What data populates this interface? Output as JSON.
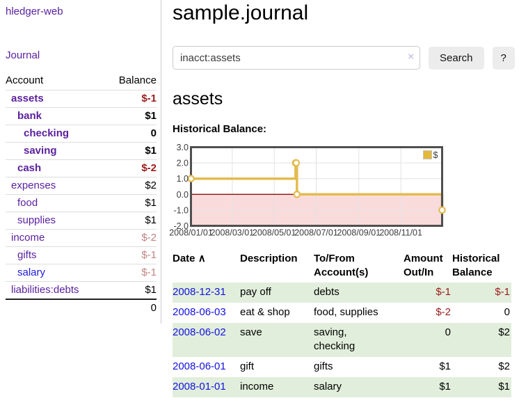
{
  "app": {
    "brand": "hledger-web",
    "nav_journal": "Journal"
  },
  "sidebar": {
    "header": {
      "account": "Account",
      "balance": "Balance"
    },
    "accounts": [
      {
        "name": "assets",
        "balance": "$-1",
        "row_cls": "lvl1 strong",
        "name_cls": "",
        "bal_cls": "neg"
      },
      {
        "name": "bank",
        "balance": "$1",
        "row_cls": "lvl2 strong",
        "name_cls": "",
        "bal_cls": ""
      },
      {
        "name": "checking",
        "balance": "0",
        "row_cls": "lvl3 strong",
        "name_cls": "",
        "bal_cls": ""
      },
      {
        "name": "saving",
        "balance": "$1",
        "row_cls": "lvl3 strong",
        "name_cls": "",
        "bal_cls": ""
      },
      {
        "name": "cash",
        "balance": "$-2",
        "row_cls": "lvl2 strong",
        "name_cls": "",
        "bal_cls": "neg"
      },
      {
        "name": "expenses",
        "balance": "$2",
        "row_cls": "lvl1",
        "name_cls": "",
        "bal_cls": ""
      },
      {
        "name": "food",
        "balance": "$1",
        "row_cls": "lvl2",
        "name_cls": "",
        "bal_cls": ""
      },
      {
        "name": "supplies",
        "balance": "$1",
        "row_cls": "lvl2",
        "name_cls": "",
        "bal_cls": ""
      },
      {
        "name": "income",
        "balance": "$-2",
        "row_cls": "lvl1",
        "name_cls": "",
        "bal_cls": "neg-muted"
      },
      {
        "name": "gifts",
        "balance": "$-1",
        "row_cls": "lvl2",
        "name_cls": "",
        "bal_cls": "neg-muted"
      },
      {
        "name": "salary",
        "balance": "$-1",
        "row_cls": "lvl2",
        "name_cls": "blue",
        "bal_cls": "neg-muted"
      },
      {
        "name": "liabilities:debts",
        "balance": "$1",
        "row_cls": "lvl1",
        "name_cls": "",
        "bal_cls": ""
      }
    ],
    "total": "0"
  },
  "main": {
    "title": "sample.journal",
    "search": {
      "value": "inacct:assets",
      "clear_icon": "×",
      "button": "Search",
      "help": "?"
    },
    "account_heading": "assets",
    "chart_label": "Historical Balance:"
  },
  "chart_data": {
    "type": "line",
    "title": "Historical Balance:",
    "series": [
      {
        "name": "$",
        "style": "steps",
        "color": "#e3bb4f",
        "x": [
          "2008-01-01",
          "2008-06-01",
          "2008-06-02",
          "2008-06-03",
          "2008-12-31"
        ],
        "y": [
          1,
          2,
          2,
          0,
          -1
        ]
      }
    ],
    "xrange": [
      "2008-01-01",
      "2008-12-31"
    ],
    "ylim": [
      -2,
      3
    ],
    "yticks": [
      "3.0",
      "2.0",
      "1.0",
      "0.0",
      "-1.0",
      "-2.0"
    ],
    "xticks": [
      {
        "label": "2008/01/01",
        "date": "2008-01-01"
      },
      {
        "label": "2008/03/01",
        "date": "2008-03-01"
      },
      {
        "label": "2008/05/01",
        "date": "2008-05-01"
      },
      {
        "label": "2008/07/01",
        "date": "2008-07-01"
      },
      {
        "label": "2008/09/01",
        "date": "2008-09-01"
      },
      {
        "label": "2008/11/01",
        "date": "2008-11-01"
      }
    ],
    "grid": true,
    "legend": {
      "position": "top-right",
      "label": "$",
      "color": "#e4b839"
    },
    "negative_region_color": "#fadbdb",
    "zero_line_color": "#8f0e0e"
  },
  "register": {
    "headers": {
      "date": "Date",
      "description": "Description",
      "accounts": "To/From\nAccount(s)",
      "amount": "Amount\nOut/In",
      "balance": "Historical\nBalance"
    },
    "sort_icon": "∧",
    "rows": [
      {
        "date": "2008-12-31",
        "description": "pay off",
        "accounts": "debts",
        "amount": "$-1",
        "amount_cls": "neg",
        "balance": "$-1",
        "balance_cls": "neg",
        "row_cls": "stripe"
      },
      {
        "date": "2008-06-03",
        "description": "eat & shop",
        "accounts": "food, supplies",
        "amount": "$-2",
        "amount_cls": "neg",
        "balance": "0",
        "balance_cls": "",
        "row_cls": ""
      },
      {
        "date": "2008-06-02",
        "description": "save",
        "accounts": "saving,\nchecking",
        "amount": "0",
        "amount_cls": "",
        "balance": "$2",
        "balance_cls": "",
        "row_cls": "stripe"
      },
      {
        "date": "2008-06-01",
        "description": "gift",
        "accounts": "gifts",
        "amount": "$1",
        "amount_cls": "",
        "balance": "$2",
        "balance_cls": "",
        "row_cls": ""
      },
      {
        "date": "2008-01-01",
        "description": "income",
        "accounts": "salary",
        "amount": "$1",
        "amount_cls": "",
        "balance": "$1",
        "balance_cls": "",
        "row_cls": "stripe"
      }
    ]
  }
}
